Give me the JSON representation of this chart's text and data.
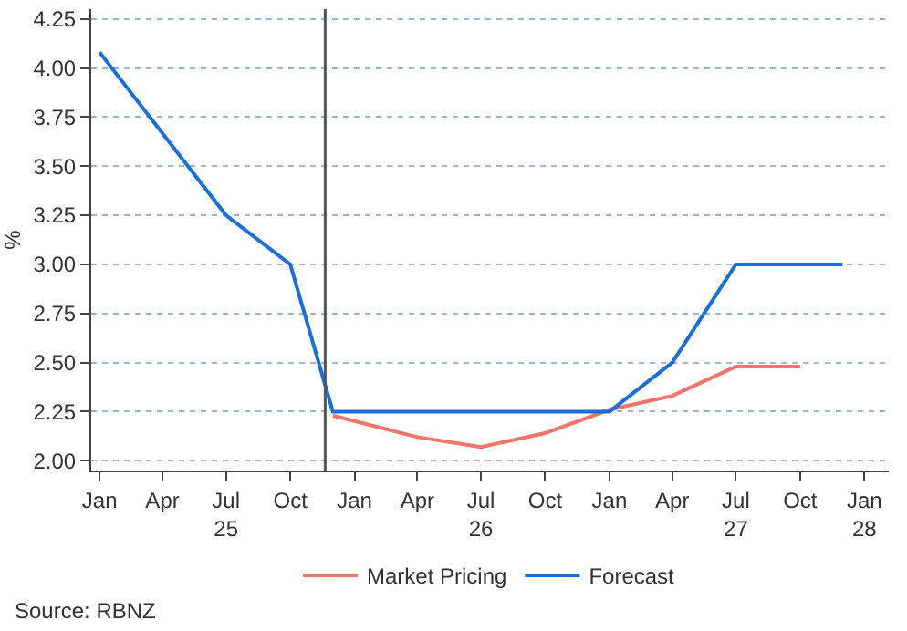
{
  "chart_data": {
    "type": "line",
    "ylabel": "%",
    "series": [
      {
        "name": "Market Pricing",
        "color": "#f4736b",
        "x": [
          "2025-12-01",
          "2026-04-01",
          "2026-07-01",
          "2026-10-01",
          "2027-01-01",
          "2027-04-01",
          "2027-07-01",
          "2027-10-01"
        ],
        "values": [
          2.23,
          2.12,
          2.07,
          2.14,
          2.26,
          2.33,
          2.48,
          2.48
        ]
      },
      {
        "name": "Forecast",
        "color": "#1a6fdc",
        "x": [
          "2025-01-01",
          "2025-07-01",
          "2025-10-01",
          "2025-12-01",
          "2027-01-01",
          "2027-04-01",
          "2027-07-01",
          "2027-12-01"
        ],
        "values": [
          4.08,
          3.25,
          3.0,
          2.25,
          2.25,
          2.5,
          3.0,
          3.0
        ]
      }
    ],
    "xlim": [
      "2024-12-20",
      "2028-02-05"
    ],
    "xticks": [
      {
        "value": "2025-01-01",
        "label": "Jan"
      },
      {
        "value": "2025-04-01",
        "label": "Apr"
      },
      {
        "value": "2025-07-01",
        "label": "Jul\n25"
      },
      {
        "value": "2025-10-01",
        "label": "Oct"
      },
      {
        "value": "2026-01-01",
        "label": "Jan"
      },
      {
        "value": "2026-04-01",
        "label": "Apr"
      },
      {
        "value": "2026-07-01",
        "label": "Jul\n26"
      },
      {
        "value": "2026-10-01",
        "label": "Oct"
      },
      {
        "value": "2027-01-01",
        "label": "Jan"
      },
      {
        "value": "2027-04-01",
        "label": "Apr"
      },
      {
        "value": "2027-07-01",
        "label": "Jul\n27"
      },
      {
        "value": "2027-10-01",
        "label": "Oct"
      },
      {
        "value": "2028-01-01",
        "label": "Jan\n28"
      }
    ],
    "ylim": [
      1.95,
      4.3
    ],
    "yticks": [
      {
        "value": 2.0,
        "label": "2.00"
      },
      {
        "value": 2.25,
        "label": "2.25"
      },
      {
        "value": 2.5,
        "label": "2.50"
      },
      {
        "value": 2.75,
        "label": "2.75"
      },
      {
        "value": 3.0,
        "label": "3.00"
      },
      {
        "value": 3.25,
        "label": "3.25"
      },
      {
        "value": 3.5,
        "label": "3.50"
      },
      {
        "value": 3.75,
        "label": "3.75"
      },
      {
        "value": 4.0,
        "label": "4.00"
      },
      {
        "value": 4.25,
        "label": "4.25"
      }
    ],
    "ref_lines": [
      {
        "axis": "x",
        "value": "2025-11-20",
        "color": "#555555"
      }
    ],
    "grid": "y",
    "legend": "bottom",
    "line_style": "solid",
    "marker": "none",
    "annotations": [
      "Source: RBNZ"
    ]
  }
}
